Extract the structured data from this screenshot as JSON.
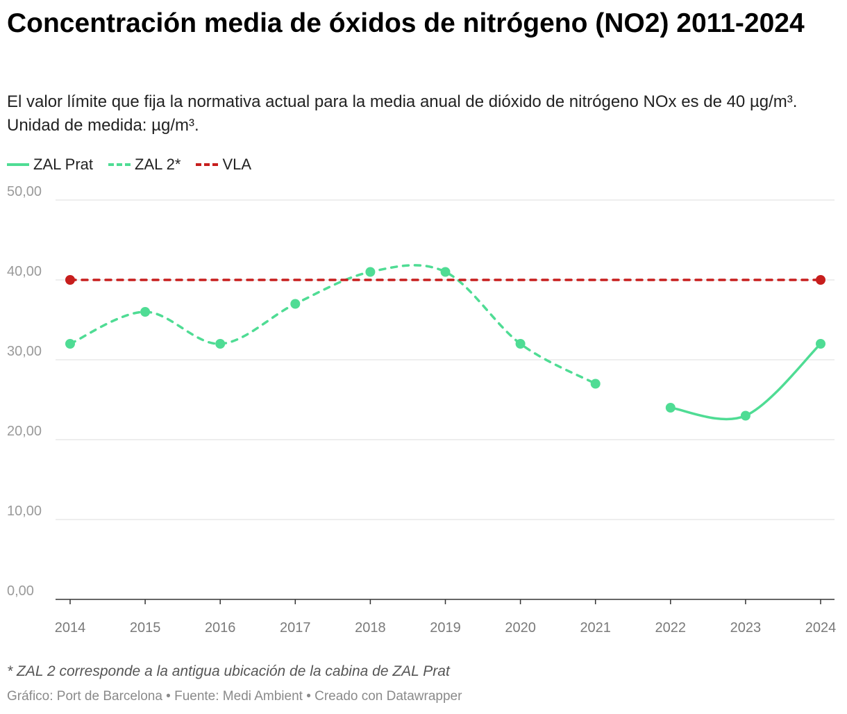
{
  "title": "Concentración media de óxidos de nitrógeno (NO2) 2011-2024",
  "subtitle": "El valor límite que fija la normativa actual para la media anual de dióxido de nitrógeno NOx es de 40 µg/m³. Unidad de medida: µg/m³.",
  "legend": [
    {
      "label": "ZAL Prat",
      "style": "solid",
      "color": "#4fdc94"
    },
    {
      "label": "ZAL 2*",
      "style": "dashed",
      "color": "#4fdc94"
    },
    {
      "label": "VLA",
      "style": "dashed",
      "color": "#c71e1d"
    }
  ],
  "footnote": "* ZAL 2 corresponde a la antigua ubicación de la cabina de ZAL Prat",
  "source": "Gráfico: Port de Barcelona • Fuente: Medi Ambient • Creado con Datawrapper",
  "chart_data": {
    "type": "line",
    "x": [
      2014,
      2015,
      2016,
      2017,
      2018,
      2019,
      2020,
      2021,
      2022,
      2023,
      2024
    ],
    "xticks": [
      "2014",
      "2015",
      "2016",
      "2017",
      "2018",
      "2019",
      "2020",
      "2021",
      "2022",
      "2023",
      "2024"
    ],
    "yticks": [
      "0,00",
      "10,00",
      "20,00",
      "30,00",
      "40,00",
      "50,00"
    ],
    "ylim": [
      0,
      50
    ],
    "grid": true,
    "legend_position": "top-left",
    "series": [
      {
        "name": "ZAL 2*",
        "style": "dashed",
        "color": "#4fdc94",
        "x": [
          2014,
          2015,
          2016,
          2017,
          2018,
          2019,
          2020,
          2021
        ],
        "values": [
          32,
          36,
          32,
          37,
          41,
          41,
          32,
          27
        ]
      },
      {
        "name": "ZAL Prat",
        "style": "solid",
        "color": "#4fdc94",
        "x": [
          2022,
          2023,
          2024
        ],
        "values": [
          24,
          23,
          32
        ]
      },
      {
        "name": "VLA",
        "style": "dashed",
        "color": "#c71e1d",
        "x": [
          2014,
          2024
        ],
        "values": [
          40,
          40
        ]
      }
    ]
  }
}
